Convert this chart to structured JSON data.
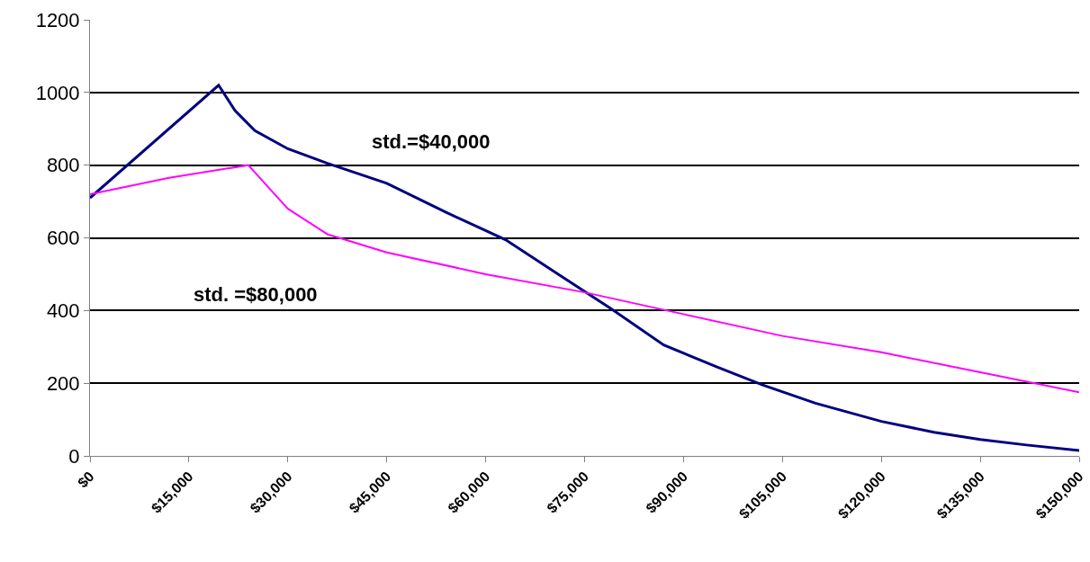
{
  "chart_data": {
    "type": "line",
    "xlim": [
      0,
      150000
    ],
    "ylim": [
      0,
      1200
    ],
    "xticks": [
      {
        "value": 0,
        "label": "$0"
      },
      {
        "value": 15000,
        "label": "$15,000"
      },
      {
        "value": 30000,
        "label": "$30,000"
      },
      {
        "value": 45000,
        "label": "$45,000"
      },
      {
        "value": 60000,
        "label": "$60,000"
      },
      {
        "value": 75000,
        "label": "$75,000"
      },
      {
        "value": 90000,
        "label": "$90,000"
      },
      {
        "value": 105000,
        "label": "$105,000"
      },
      {
        "value": 120000,
        "label": "$120,000"
      },
      {
        "value": 135000,
        "label": "$135,000"
      },
      {
        "value": 150000,
        "label": "$150,000"
      }
    ],
    "yticks": [
      0,
      200,
      400,
      600,
      800,
      1000,
      1200
    ],
    "grid": "y",
    "marker": "none",
    "line_style": "solid",
    "series": [
      {
        "color": "#000080",
        "x": [
          0,
          19500,
          22000,
          25000,
          30000,
          36000,
          45000,
          54000,
          63000,
          71000,
          79000,
          87000,
          95000,
          102000,
          110000,
          120000,
          128000,
          135000,
          142000,
          150000
        ],
        "values": [
          710,
          1020,
          950,
          895,
          845,
          805,
          750,
          670,
          595,
          500,
          405,
          305,
          245,
          195,
          145,
          95,
          65,
          45,
          30,
          15
        ]
      },
      {
        "color": "#ff00ff",
        "x": [
          0,
          12000,
          24000,
          27000,
          30000,
          36000,
          45000,
          60000,
          75000,
          90000,
          105000,
          120000,
          135000,
          150000
        ],
        "values": [
          720,
          765,
          800,
          740,
          680,
          610,
          560,
          500,
          450,
          390,
          330,
          285,
          230,
          175
        ]
      }
    ],
    "annotations": [
      "std.=$40,000",
      "std. =$80,000"
    ]
  }
}
